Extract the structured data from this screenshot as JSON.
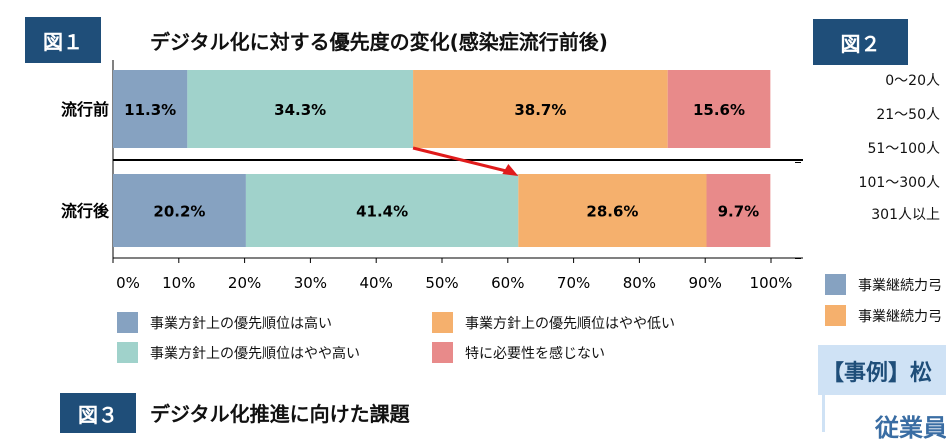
{
  "fig1": {
    "badge": "図１",
    "title": "デジタル化に対する優先度の変化(感染症流行前後)"
  },
  "fig2": {
    "badge": "図２",
    "row_labels": [
      "0～20人",
      "21～50人",
      "51～100人",
      "101～300人",
      "301人以上"
    ],
    "legend": [
      {
        "label": "事業継続力弓",
        "color": "#86a2c1"
      },
      {
        "label": "事業継続力弓",
        "color": "#f5b06d"
      }
    ]
  },
  "fig3": {
    "badge": "図３",
    "title": "デジタル化推進に向けた課題"
  },
  "case": {
    "title": "【事例】松",
    "subtitle": "従業員"
  },
  "chart_data": {
    "type": "bar",
    "orientation": "horizontal",
    "stacked": true,
    "categories": [
      "流行前",
      "流行後"
    ],
    "xlim": [
      0,
      100
    ],
    "xticks": [
      "0%",
      "10%",
      "20%",
      "30%",
      "40%",
      "50%",
      "60%",
      "70%",
      "80%",
      "90%",
      "100%"
    ],
    "series": [
      {
        "name": "事業方針上の優先順位は高い",
        "values": [
          11.3,
          20.2
        ],
        "labels": [
          "11.3%",
          "20.2%"
        ],
        "color": "#86a2c1"
      },
      {
        "name": "事業方針上の優先順位はやや高い",
        "values": [
          34.3,
          41.4
        ],
        "labels": [
          "34.3%",
          "41.4%"
        ],
        "color": "#a0d2cb"
      },
      {
        "name": "事業方針上の優先順位はやや低い",
        "values": [
          38.7,
          28.6
        ],
        "labels": [
          "38.7%",
          "28.6%"
        ],
        "color": "#f5b06d"
      },
      {
        "name": "特に必要性を感じない",
        "values": [
          15.6,
          9.7
        ],
        "labels": [
          "15.6%",
          "9.7%"
        ],
        "color": "#e88a8a"
      }
    ],
    "annotation": "arrow",
    "legend_position": "bottom"
  }
}
